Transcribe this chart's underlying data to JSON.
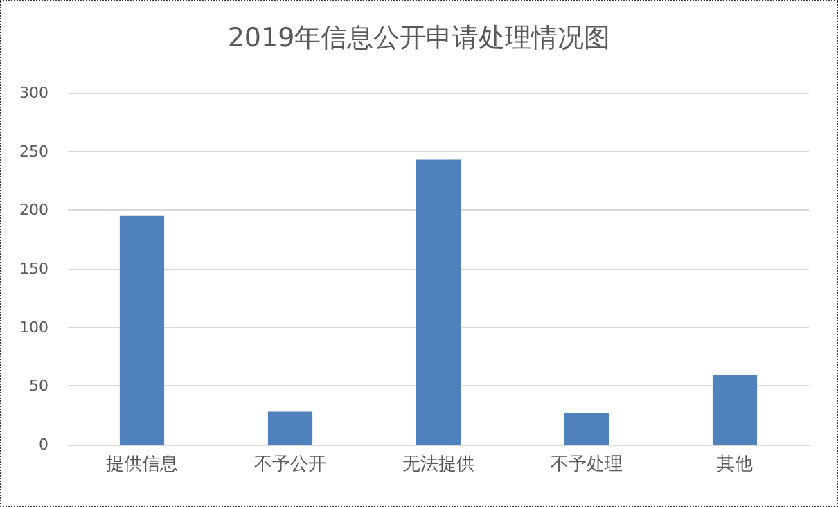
{
  "chart_data": {
    "type": "bar",
    "title": "2019年信息公开申请处理情况图",
    "categories": [
      "提供信息",
      "不予公开",
      "无法提供",
      "不予处理",
      "其他"
    ],
    "values": [
      195,
      28,
      243,
      27,
      59
    ],
    "color": "#4f81bd",
    "ylim": [
      0,
      300
    ],
    "yticks": [
      0,
      50,
      100,
      150,
      200,
      250,
      300
    ],
    "grid": "y"
  }
}
